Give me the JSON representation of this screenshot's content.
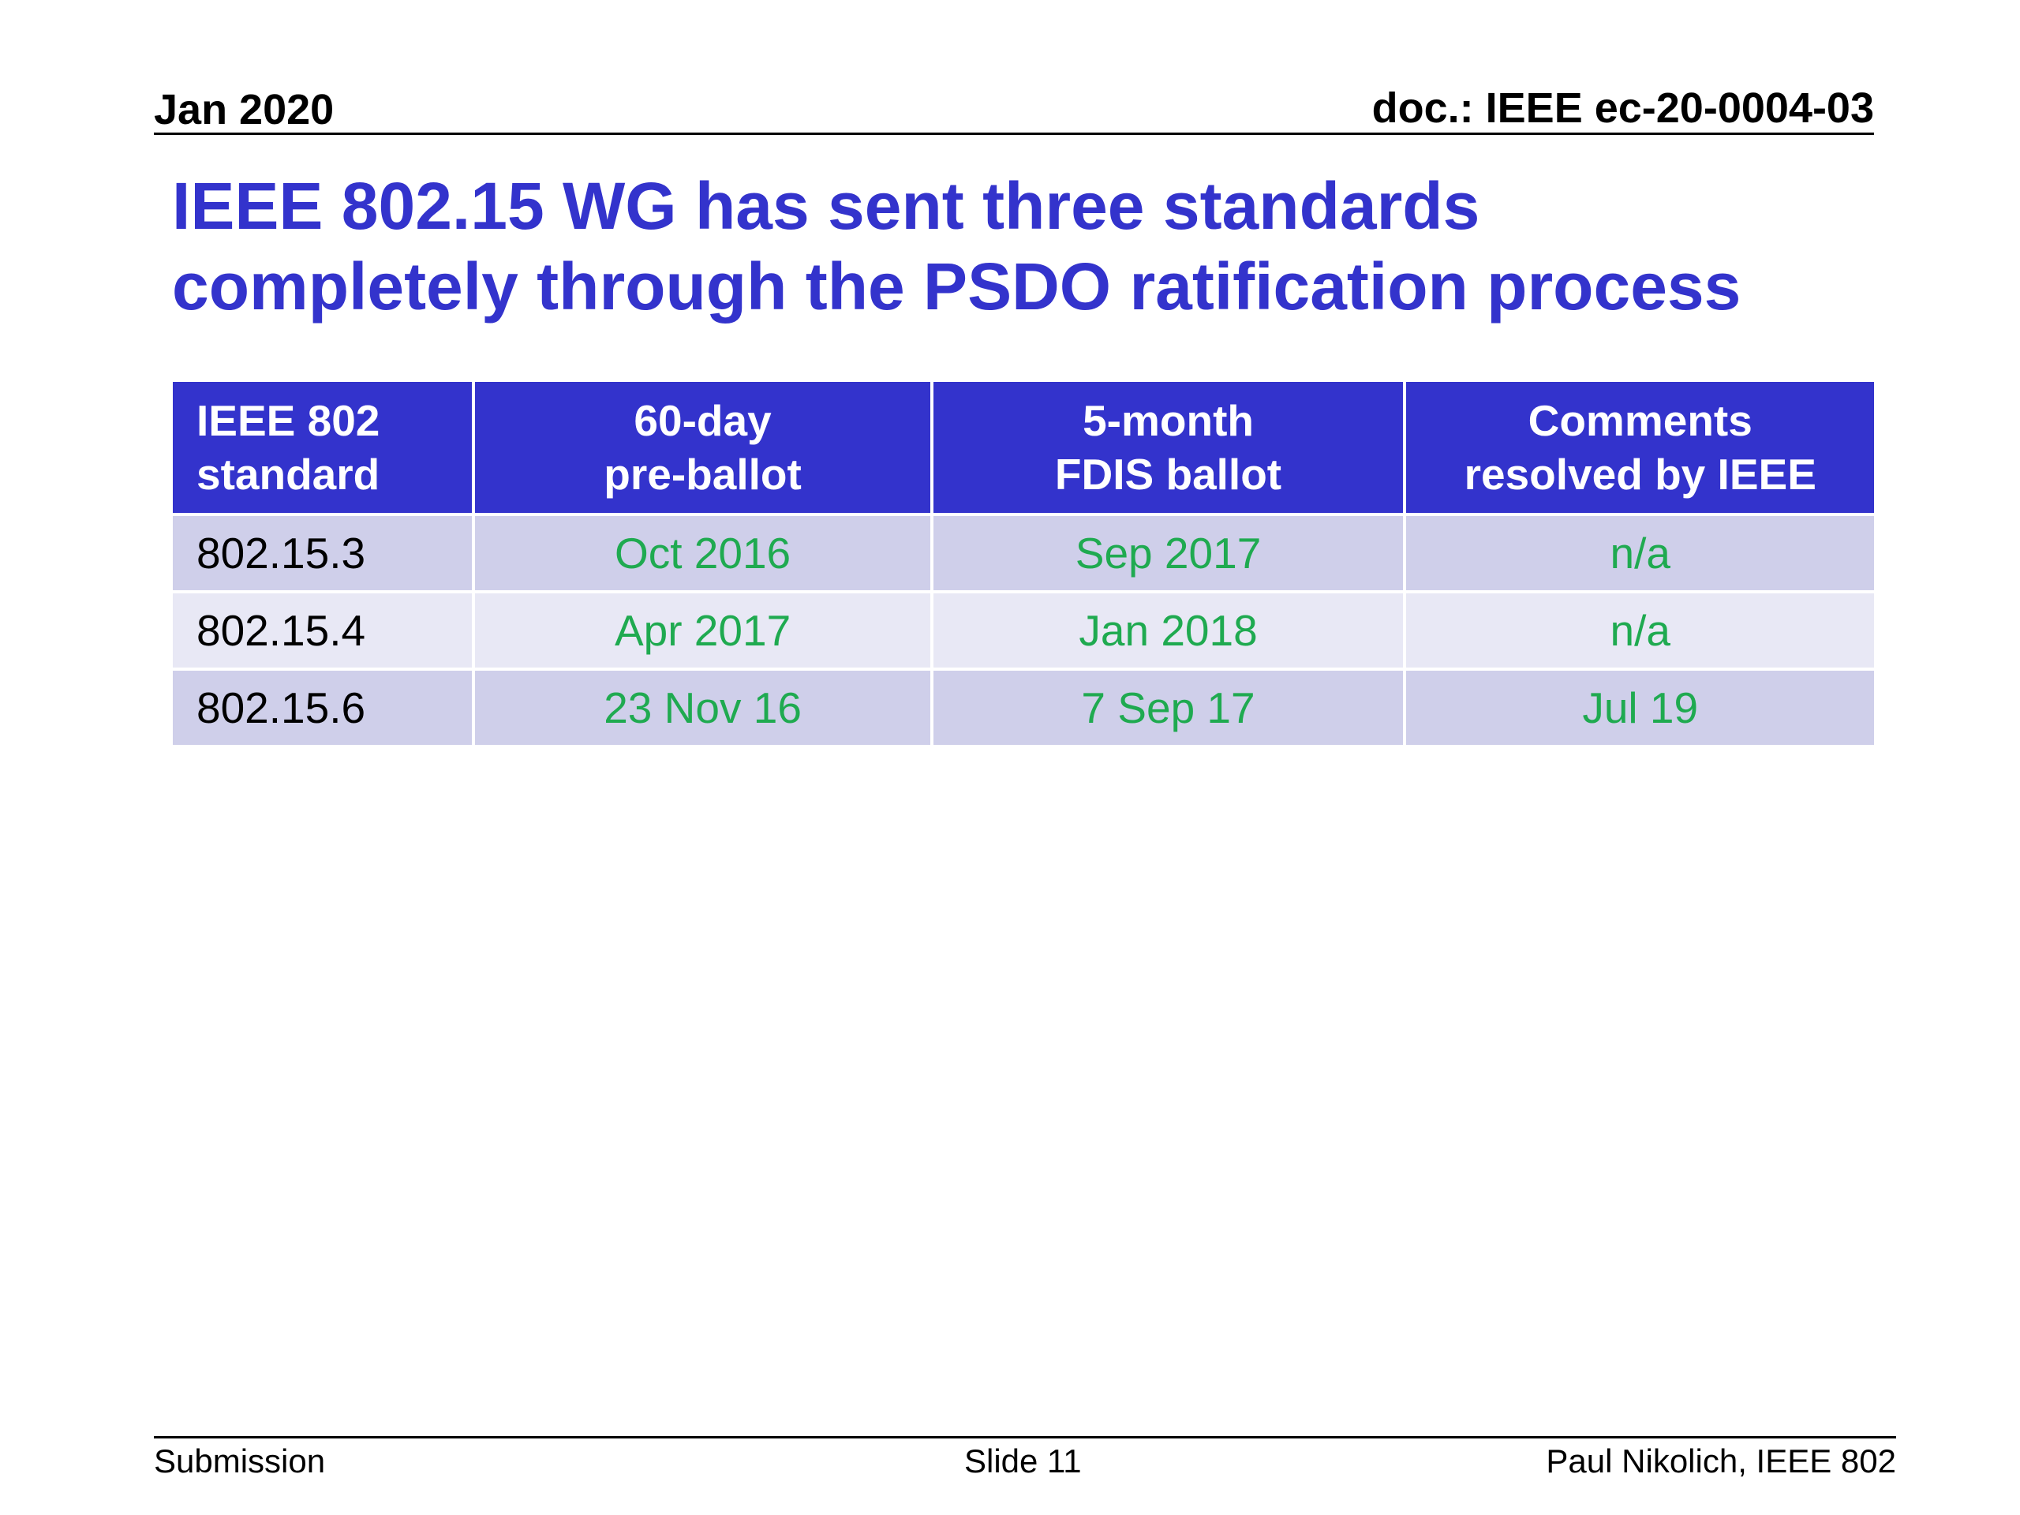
{
  "header": {
    "date": "Jan 2020",
    "doc": "doc.: IEEE ec-20-0004-03"
  },
  "title": {
    "line1": "IEEE 802.15 WG has sent three standards",
    "line2": "completely through the PSDO ratification process"
  },
  "table": {
    "headers": [
      [
        "IEEE 802",
        "standard"
      ],
      [
        "60-day",
        "pre-ballot"
      ],
      [
        "5-month",
        "FDIS ballot"
      ],
      [
        "Comments",
        "resolved by IEEE"
      ]
    ],
    "rows": [
      [
        "802.15.3",
        "Oct 2016",
        "Sep 2017",
        "n/a"
      ],
      [
        "802.15.4",
        "Apr 2017",
        "Jan 2018",
        "n/a"
      ],
      [
        "802.15.6",
        "23 Nov 16",
        "7 Sep 17",
        "Jul 19"
      ]
    ]
  },
  "footer": {
    "left": "Submission",
    "center": "Slide 11",
    "right": "Paul Nikolich, IEEE 802"
  },
  "colors": {
    "title": "#3333cc",
    "header_bg": "#3333cc",
    "row_odd": "#cfcfea",
    "row_even": "#e8e8f5",
    "date_text": "#1faa50"
  }
}
